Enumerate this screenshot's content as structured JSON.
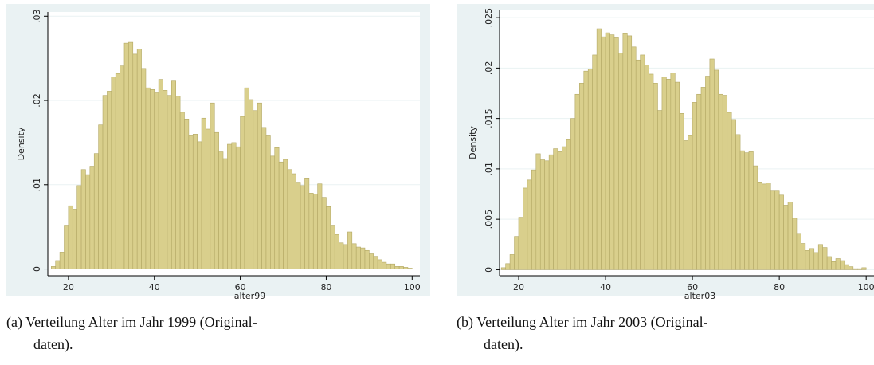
{
  "chart_data": [
    {
      "type": "histogram",
      "xlabel": "alter99",
      "ylabel": "Density",
      "caption": [
        "(a) Verteilung Alter im Jahr 1999 (Original-",
        "daten)."
      ],
      "bins": [
        16,
        17,
        18,
        19,
        20,
        21,
        22,
        23,
        24,
        25,
        26,
        27,
        28,
        29,
        30,
        31,
        32,
        33,
        34,
        35,
        36,
        37,
        38,
        39,
        40,
        41,
        42,
        43,
        44,
        45,
        46,
        47,
        48,
        49,
        50,
        51,
        52,
        53,
        54,
        55,
        56,
        57,
        58,
        59,
        60,
        61,
        62,
        63,
        64,
        65,
        66,
        67,
        68,
        69,
        70,
        71,
        72,
        73,
        74,
        75,
        76,
        77,
        78,
        79,
        80,
        81,
        82,
        83,
        84,
        85,
        86,
        87,
        88,
        89,
        90,
        91,
        92,
        93,
        94,
        95,
        96,
        97,
        98,
        99,
        100
      ],
      "values": [
        0.0003,
        0.001,
        0.002,
        0.0052,
        0.0075,
        0.0071,
        0.0099,
        0.0118,
        0.0112,
        0.0122,
        0.0137,
        0.0171,
        0.0206,
        0.0211,
        0.0228,
        0.0232,
        0.0241,
        0.0268,
        0.0269,
        0.0255,
        0.0261,
        0.0238,
        0.0215,
        0.0213,
        0.0209,
        0.0225,
        0.0212,
        0.0206,
        0.0223,
        0.0205,
        0.0186,
        0.0178,
        0.0158,
        0.016,
        0.0151,
        0.0179,
        0.0166,
        0.0197,
        0.0162,
        0.0139,
        0.0131,
        0.0148,
        0.015,
        0.0145,
        0.0181,
        0.0215,
        0.0201,
        0.0188,
        0.0197,
        0.0168,
        0.0158,
        0.0134,
        0.0144,
        0.0127,
        0.013,
        0.0118,
        0.0113,
        0.0103,
        0.0099,
        0.0108,
        0.009,
        0.0089,
        0.0101,
        0.0085,
        0.0074,
        0.0052,
        0.0041,
        0.0031,
        0.0029,
        0.0044,
        0.003,
        0.0026,
        0.0025,
        0.0022,
        0.0018,
        0.0015,
        0.0011,
        0.0008,
        0.0006,
        0.0006,
        0.0003,
        0.0003,
        0.0002,
        0.0001
      ],
      "color": "#d9cf8c",
      "xlim": [
        15.2,
        101.8
      ],
      "xticks": [
        20,
        40,
        60,
        80,
        100
      ],
      "ylim": [
        -0.0008,
        0.0305
      ],
      "yticks": [
        0,
        {
          "value": 0.01,
          "label": ".01"
        },
        {
          "value": 0.02,
          "label": ".02"
        },
        {
          "value": 0.03,
          "label": ".03"
        }
      ],
      "grid": true
    },
    {
      "type": "histogram",
      "xlabel": "alter03",
      "ylabel": "Density",
      "caption": [
        "(b) Verteilung Alter im Jahr 2003 (Original-",
        "daten)."
      ],
      "bins": [
        16,
        17,
        18,
        19,
        20,
        21,
        22,
        23,
        24,
        25,
        26,
        27,
        28,
        29,
        30,
        31,
        32,
        33,
        34,
        35,
        36,
        37,
        38,
        39,
        40,
        41,
        42,
        43,
        44,
        45,
        46,
        47,
        48,
        49,
        50,
        51,
        52,
        53,
        54,
        55,
        56,
        57,
        58,
        59,
        60,
        61,
        62,
        63,
        64,
        65,
        66,
        67,
        68,
        69,
        70,
        71,
        72,
        73,
        74,
        75,
        76,
        77,
        78,
        79,
        80,
        81,
        82,
        83,
        84,
        85,
        86,
        87,
        88,
        89,
        90,
        91,
        92,
        93,
        94,
        95,
        96,
        97,
        98,
        99,
        100
      ],
      "values": [
        0.0002,
        0.0006,
        0.0015,
        0.0033,
        0.0052,
        0.0081,
        0.0089,
        0.0099,
        0.0115,
        0.0109,
        0.0108,
        0.0114,
        0.012,
        0.0117,
        0.0122,
        0.0129,
        0.015,
        0.0174,
        0.0185,
        0.0197,
        0.0199,
        0.0213,
        0.0239,
        0.0231,
        0.0235,
        0.0233,
        0.023,
        0.0215,
        0.0234,
        0.0232,
        0.0221,
        0.0208,
        0.0213,
        0.0203,
        0.0194,
        0.0185,
        0.0158,
        0.0191,
        0.0189,
        0.0195,
        0.0186,
        0.0155,
        0.0128,
        0.0133,
        0.0166,
        0.0174,
        0.0181,
        0.0192,
        0.0209,
        0.0198,
        0.0174,
        0.0173,
        0.0156,
        0.0149,
        0.0134,
        0.0118,
        0.0116,
        0.0117,
        0.0103,
        0.0087,
        0.0085,
        0.0086,
        0.0078,
        0.0078,
        0.0074,
        0.0064,
        0.0067,
        0.0051,
        0.0036,
        0.0026,
        0.0019,
        0.0021,
        0.0017,
        0.0025,
        0.0022,
        0.0013,
        0.0008,
        0.0011,
        0.0009,
        0.0005,
        0.0003,
        0.0001,
        0.0001,
        0.0002
      ],
      "color": "#d9cf8c",
      "xlim": [
        15.6,
        101.8
      ],
      "xticks": [
        20,
        40,
        60,
        80,
        100
      ],
      "ylim": [
        -0.0006,
        0.0258
      ],
      "yticks": [
        0,
        {
          "value": 0.005,
          "label": ".005"
        },
        {
          "value": 0.01,
          "label": ".01"
        },
        {
          "value": 0.015,
          "label": ".015"
        },
        {
          "value": 0.02,
          "label": ".02"
        },
        {
          "value": 0.025,
          "label": ".025"
        }
      ],
      "grid": true
    }
  ]
}
